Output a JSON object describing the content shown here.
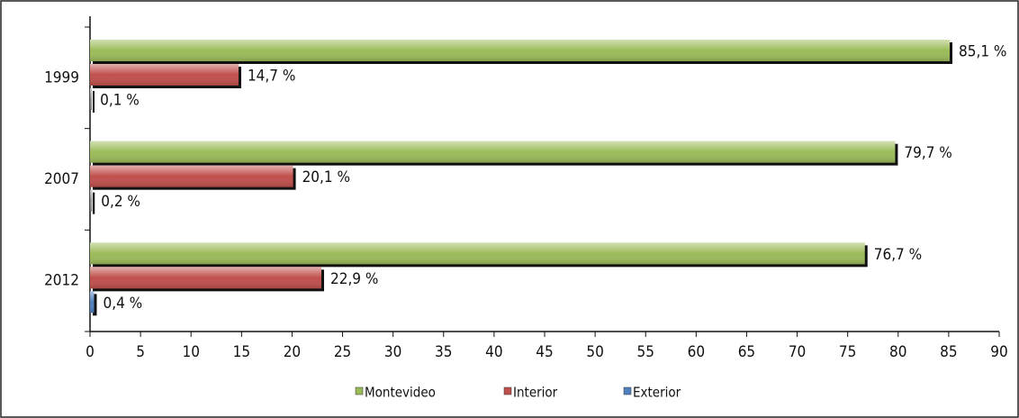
{
  "chart_data": {
    "type": "bar",
    "orientation": "horizontal",
    "categories": [
      "1999",
      "2007",
      "2012"
    ],
    "series": [
      {
        "name": "Montevideo",
        "color": "#9bbb59",
        "values": [
          85.1,
          79.7,
          76.7
        ],
        "value_labels": [
          "85,1 %",
          "79,7 %",
          "76,7 %"
        ]
      },
      {
        "name": "Interior",
        "color": "#c0504d",
        "values": [
          14.7,
          20.1,
          22.9
        ],
        "value_labels": [
          "14,7 %",
          "20,1 %",
          "22,9 %"
        ]
      },
      {
        "name": "Exterior",
        "color": "#4f81bd",
        "colors": [
          "#8c8c8c",
          "#8c8c8c",
          "#4f81bd"
        ],
        "values": [
          0.1,
          0.2,
          0.4
        ],
        "value_labels": [
          "0,1 %",
          "0,2 %",
          "0,4 %"
        ]
      }
    ],
    "xlim": [
      0,
      90
    ],
    "xticks": [
      0,
      5,
      10,
      15,
      20,
      25,
      30,
      35,
      40,
      45,
      50,
      55,
      60,
      65,
      70,
      75,
      80,
      85,
      90
    ],
    "grid": false,
    "legend": "bottom"
  }
}
